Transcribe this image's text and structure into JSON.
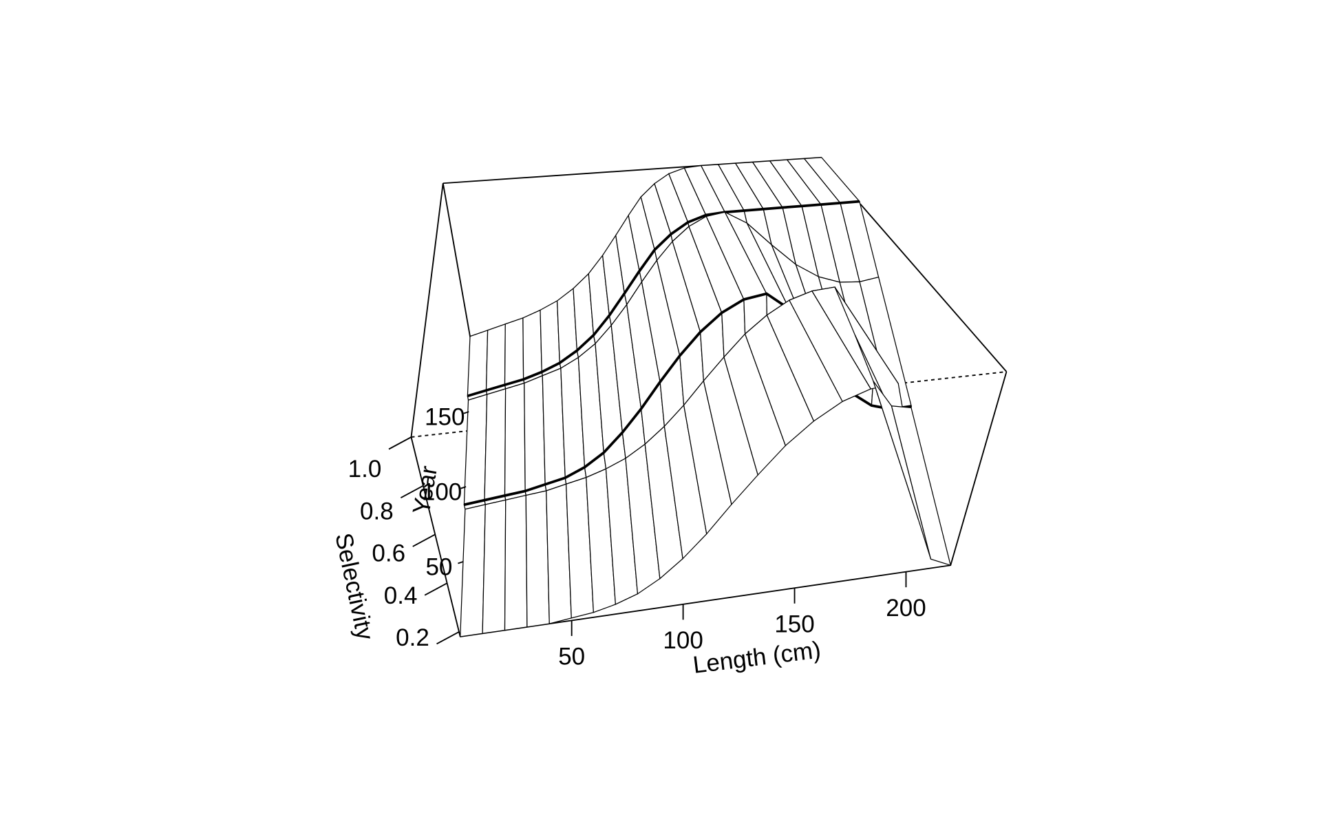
{
  "chart_data": {
    "type": "surface",
    "xlabel": "Length (cm)",
    "ylabel": "Year",
    "zlabel": "Selectivity",
    "x": [
      0,
      10,
      20,
      30,
      40,
      50,
      60,
      70,
      80,
      90,
      100,
      110,
      120,
      130,
      140,
      150,
      160,
      170,
      180,
      190,
      200,
      210,
      220
    ],
    "xlim": [
      0,
      220
    ],
    "ylim": [
      0,
      195
    ],
    "zlim": [
      0.18,
      1.0
    ],
    "xticks": [
      50,
      100,
      150,
      200
    ],
    "yticks": [
      50,
      100,
      150
    ],
    "zticks": [
      0.2,
      0.4,
      0.6,
      0.8,
      {
        "value": 1,
        "label": "1.0"
      }
    ],
    "color": "#000000",
    "fill": "#ffffff",
    "blocks": [
      {
        "years": [
          0,
          85
        ],
        "values": [
          0.18,
          0.18,
          0.18,
          0.18,
          0.18,
          0.19,
          0.2,
          0.22,
          0.25,
          0.3,
          0.37,
          0.46,
          0.57,
          0.68,
          0.79,
          0.88,
          0.95,
          0.99,
          1.0,
          0.7,
          0.4,
          0.22,
          0.18
        ]
      },
      {
        "years": [
          85,
          155
        ],
        "values": [
          0.2,
          0.2,
          0.2,
          0.2,
          0.21,
          0.22,
          0.25,
          0.3,
          0.38,
          0.48,
          0.6,
          0.72,
          0.83,
          0.92,
          0.98,
          1.0,
          0.9,
          0.7,
          0.5,
          0.35,
          0.25,
          0.2,
          0.19
        ]
      },
      {
        "years": [
          155,
          195
        ],
        "values": [
          0.22,
          0.22,
          0.22,
          0.22,
          0.23,
          0.25,
          0.29,
          0.35,
          0.44,
          0.55,
          0.67,
          0.79,
          0.88,
          0.95,
          0.99,
          1.0,
          1.0,
          1.0,
          1.0,
          1.0,
          1.0,
          1.0,
          1.0
        ]
      }
    ]
  }
}
